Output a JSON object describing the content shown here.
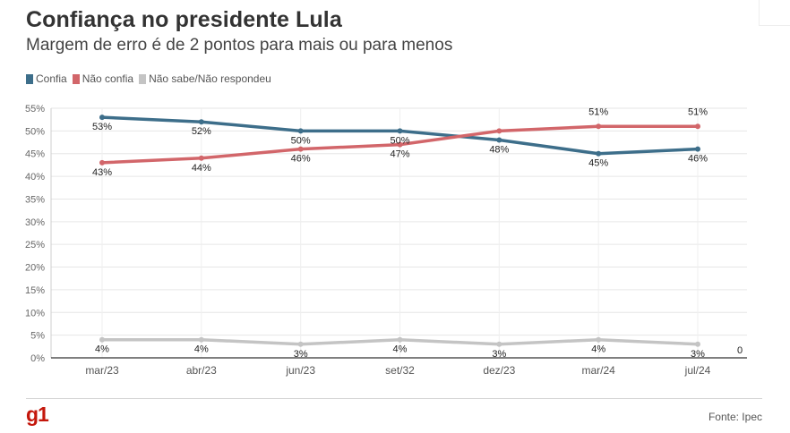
{
  "title": "Confiança no presidente Lula",
  "subtitle": "Margem de erro é de 2 pontos para mais ou para menos",
  "legend": [
    {
      "label": "Confia",
      "color": "#3d6e8a"
    },
    {
      "label": "Não confia",
      "color": "#d2666a"
    },
    {
      "label": "Não sabe/Não respondeu",
      "color": "#c4c4c4"
    }
  ],
  "footer": {
    "logo": "g1",
    "source": "Fonte: Ipec"
  },
  "chart_data": {
    "type": "line",
    "categories": [
      "mar/23",
      "abr/23",
      "jun/23",
      "set/32",
      "dez/23",
      "mar/24",
      "jul/24"
    ],
    "series": [
      {
        "name": "Confia",
        "values": [
          53,
          52,
          50,
          50,
          48,
          45,
          46
        ],
        "color": "#3d6e8a"
      },
      {
        "name": "Não confia",
        "values": [
          43,
          44,
          46,
          47,
          50,
          51,
          51
        ],
        "color": "#d2666a"
      },
      {
        "name": "Não sabe/Não respondeu",
        "values": [
          4,
          4,
          3,
          4,
          3,
          4,
          3
        ],
        "color": "#c4c4c4"
      }
    ],
    "ylim": [
      0,
      55
    ],
    "y_ticks": [
      "0%",
      "5%",
      "10%",
      "15%",
      "20%",
      "25%",
      "30%",
      "35%",
      "40%",
      "45%",
      "50%",
      "55%"
    ],
    "tick_values": [
      0,
      5,
      10,
      15,
      20,
      25,
      30,
      35,
      40,
      45,
      50,
      55
    ],
    "value_suffix": "%",
    "labels": {
      "Confia": [
        "53%",
        "52%",
        "50%",
        "50%",
        "48%",
        "45%",
        "46%"
      ],
      "Não confia": [
        "43%",
        "44%",
        "46%",
        "47%",
        "",
        "51%",
        "51%"
      ],
      "Não sabe/Não respondeu": [
        "4%",
        "4%",
        "3%",
        "4%",
        "3%",
        "4%",
        "3%"
      ]
    },
    "extra_annotation": "0",
    "grid": true
  }
}
